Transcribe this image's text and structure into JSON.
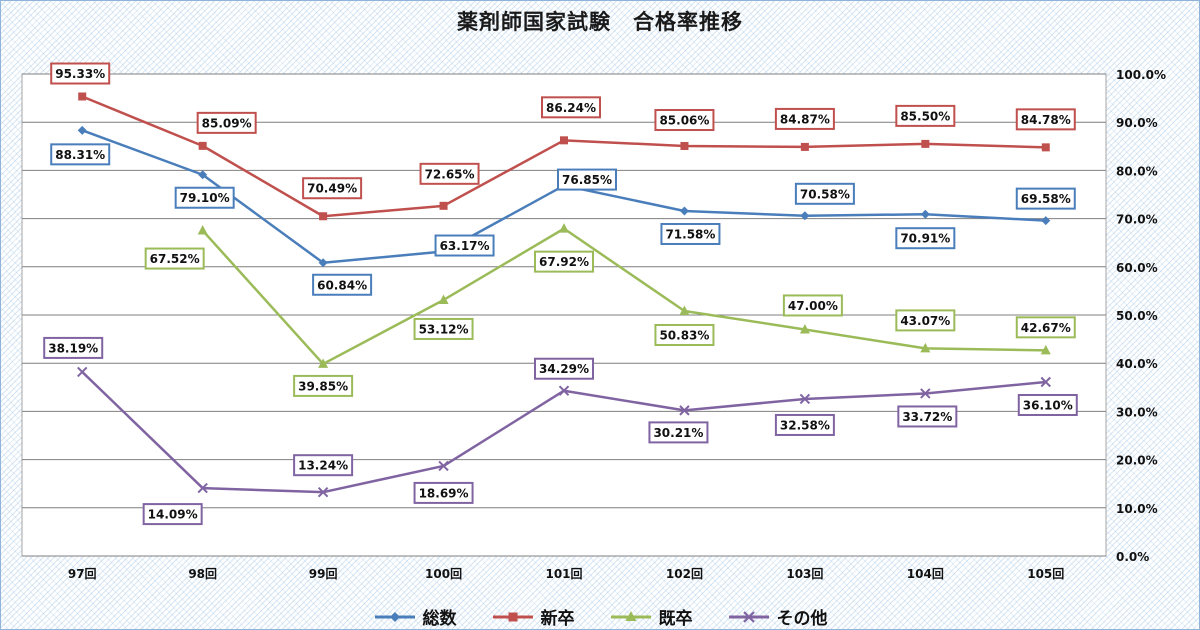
{
  "chart_data": {
    "type": "line",
    "title": "薬剤師国家試験　合格率推移",
    "categories": [
      "97回",
      "98回",
      "99回",
      "100回",
      "101回",
      "102回",
      "103回",
      "104回",
      "105回"
    ],
    "ylim": [
      0,
      100
    ],
    "y_tick_labels": [
      "0.0%",
      "10.0%",
      "20.0%",
      "30.0%",
      "40.0%",
      "50.0%",
      "60.0%",
      "70.0%",
      "80.0%",
      "90.0%",
      "100.0%"
    ],
    "y_axis_side": "right",
    "grid": true,
    "legend_position": "bottom",
    "series": [
      {
        "name": "総数",
        "color": "#4a7ebb",
        "marker": "diamond",
        "values": [
          88.31,
          79.1,
          60.84,
          63.17,
          76.85,
          71.58,
          70.58,
          70.91,
          69.58
        ],
        "labels": [
          "88.31%",
          "79.10%",
          "60.84%",
          "63.17%",
          "76.85%",
          "71.58%",
          "70.58%",
          "70.91%",
          "69.58%"
        ]
      },
      {
        "name": "新卒",
        "color": "#c0504d",
        "marker": "square",
        "values": [
          95.33,
          85.09,
          70.49,
          72.65,
          86.24,
          85.06,
          84.87,
          85.5,
          84.78
        ],
        "labels": [
          "95.33%",
          "85.09%",
          "70.49%",
          "72.65%",
          "86.24%",
          "85.06%",
          "84.87%",
          "85.50%",
          "84.78%"
        ]
      },
      {
        "name": "既卒",
        "color": "#9bbb59",
        "marker": "triangle",
        "values": [
          null,
          67.52,
          39.85,
          53.12,
          67.92,
          50.83,
          47.0,
          43.07,
          42.67
        ],
        "labels": [
          null,
          "67.52%",
          "39.85%",
          "53.12%",
          "67.92%",
          "50.83%",
          "47.00%",
          "43.07%",
          "42.67%"
        ]
      },
      {
        "name": "その他",
        "color": "#8064a2",
        "marker": "x",
        "values": [
          38.19,
          14.09,
          13.24,
          18.69,
          34.29,
          30.21,
          32.58,
          33.72,
          36.1
        ],
        "labels": [
          "38.19%",
          "14.09%",
          "13.24%",
          "18.69%",
          "34.29%",
          "30.21%",
          "32.58%",
          "33.72%",
          "36.10%"
        ]
      }
    ]
  }
}
